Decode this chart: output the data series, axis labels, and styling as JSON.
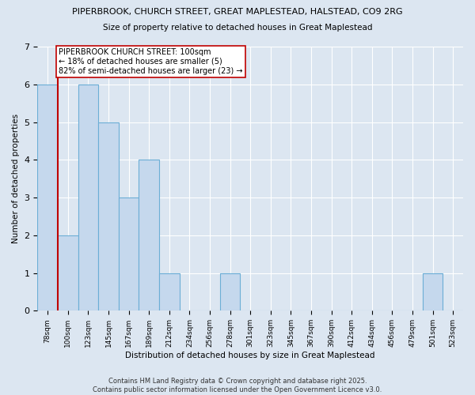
{
  "title1": "PIPERBROOK, CHURCH STREET, GREAT MAPLESTEAD, HALSTEAD, CO9 2RG",
  "title2": "Size of property relative to detached houses in Great Maplestead",
  "xlabel": "Distribution of detached houses by size in Great Maplestead",
  "ylabel": "Number of detached properties",
  "categories": [
    "78sqm",
    "100sqm",
    "123sqm",
    "145sqm",
    "167sqm",
    "189sqm",
    "212sqm",
    "234sqm",
    "256sqm",
    "278sqm",
    "301sqm",
    "323sqm",
    "345sqm",
    "367sqm",
    "390sqm",
    "412sqm",
    "434sqm",
    "456sqm",
    "479sqm",
    "501sqm",
    "523sqm"
  ],
  "values": [
    6,
    2,
    6,
    5,
    3,
    4,
    1,
    0,
    0,
    1,
    0,
    0,
    0,
    0,
    0,
    0,
    0,
    0,
    0,
    1,
    0
  ],
  "highlight_index": 1,
  "highlight_color": "#c00000",
  "bar_color": "#c5d8ed",
  "bar_edge_color": "#6baed6",
  "background_color": "#dce6f1",
  "plot_bg_color": "#dce6f1",
  "ylim": [
    0,
    7
  ],
  "yticks": [
    0,
    1,
    2,
    3,
    4,
    5,
    6,
    7
  ],
  "annotation_text": "PIPERBROOK CHURCH STREET: 100sqm\n← 18% of detached houses are smaller (5)\n82% of semi-detached houses are larger (23) →",
  "footer": "Contains HM Land Registry data © Crown copyright and database right 2025.\nContains public sector information licensed under the Open Government Licence v3.0."
}
